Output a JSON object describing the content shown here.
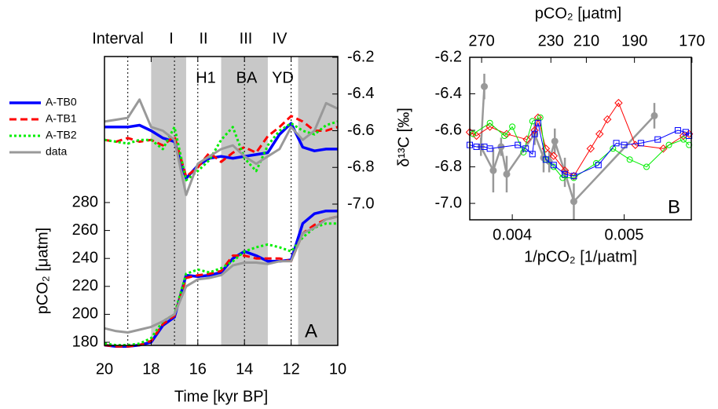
{
  "chart_data": [
    {
      "type": "line",
      "x_label": "Time [kyr BP]",
      "y_label": "pCO₂ [μatm]",
      "panel_label": "A",
      "interval_labels": [
        "Interval",
        "I",
        "II",
        "III",
        "IV"
      ],
      "events": [
        "H1",
        "BA",
        "YD"
      ],
      "shaded": [
        [
          18,
          16.5
        ],
        [
          15,
          13
        ],
        [
          11.7,
          10
        ]
      ],
      "boundaries": [
        19,
        17,
        16,
        14,
        12
      ],
      "xlim": [
        20,
        10
      ],
      "xticks": [
        20,
        18,
        16,
        14,
        12,
        10
      ],
      "ylim": [
        180,
        280
      ],
      "yticks": [
        180,
        200,
        220,
        240,
        260,
        280
      ],
      "y2lim": [
        -7.0,
        -6.2
      ],
      "y2ticks": [
        {
          "value": -7.0,
          "label": "-7.0"
        },
        -6.8,
        -6.6,
        -6.4,
        -6.2
      ],
      "x": [
        20,
        19.5,
        19,
        18.5,
        18,
        17.5,
        17,
        16.5,
        16,
        15.5,
        15,
        14.5,
        14,
        13.5,
        13,
        12.5,
        12,
        11.5,
        11,
        10.5,
        10
      ],
      "series": [
        {
          "name": "A-TB0",
          "color": "#0000ff",
          "style": "solid",
          "values": [
            178,
            177,
            177,
            178,
            180,
            192,
            198,
            228,
            227,
            228,
            230,
            240,
            245,
            242,
            238,
            238,
            239,
            265,
            272,
            274,
            274
          ]
        },
        {
          "name": "A-TB1",
          "color": "#ff0000",
          "style": "dashed",
          "values": [
            178,
            177,
            177,
            178,
            181,
            193,
            199,
            226,
            228,
            229,
            231,
            242,
            242,
            240,
            240,
            240,
            238,
            258,
            264,
            268,
            270
          ]
        },
        {
          "name": "A-TB2",
          "color": "#00ee00",
          "style": "dotted",
          "values": [
            179,
            178,
            178,
            179,
            183,
            195,
            200,
            229,
            232,
            230,
            233,
            238,
            245,
            248,
            250,
            248,
            245,
            255,
            262,
            265,
            265
          ]
        },
        {
          "name": "data",
          "color": "#999999",
          "style": "solid",
          "values": [
            190,
            188,
            187,
            189,
            191,
            195,
            200,
            220,
            225,
            226,
            228,
            235,
            237,
            237,
            236,
            238,
            238,
            258,
            262,
            268,
            270
          ]
        },
        {
          "axis": "y2",
          "color": "#0000ff",
          "style": "solid",
          "values": [
            -6.58,
            -6.58,
            -6.58,
            -6.57,
            -6.6,
            -6.64,
            -6.66,
            -6.86,
            -6.79,
            -6.75,
            -6.74,
            -6.75,
            -6.74,
            -6.73,
            -6.72,
            -6.62,
            -6.56,
            -6.69,
            -6.71,
            -6.7,
            -6.7
          ]
        },
        {
          "axis": "y2",
          "color": "#ff0000",
          "style": "dashed",
          "values": [
            -6.65,
            -6.66,
            -6.64,
            -6.66,
            -6.65,
            -6.68,
            -6.63,
            -6.85,
            -6.8,
            -6.72,
            -6.77,
            -6.72,
            -6.69,
            -6.72,
            -6.63,
            -6.58,
            -6.52,
            -6.55,
            -6.6,
            -6.6,
            -6.58
          ]
        },
        {
          "axis": "y2",
          "color": "#00ee00",
          "style": "dotted",
          "values": [
            -6.65,
            -6.66,
            -6.67,
            -6.65,
            -6.65,
            -6.7,
            -6.58,
            -6.87,
            -6.82,
            -6.76,
            -6.65,
            -6.58,
            -6.75,
            -6.82,
            -6.68,
            -6.6,
            -6.56,
            -6.6,
            -6.62,
            -6.57,
            -6.55
          ]
        },
        {
          "axis": "y2",
          "color": "#999999",
          "style": "solid",
          "values": [
            -6.55,
            -6.54,
            -6.53,
            -6.43,
            -6.58,
            -6.6,
            -6.65,
            -6.95,
            -6.78,
            -6.74,
            -6.7,
            -6.68,
            -6.74,
            -6.78,
            -6.74,
            -6.7,
            -6.58,
            -6.65,
            -6.6,
            -6.45,
            -6.48
          ]
        }
      ]
    },
    {
      "type": "scatter",
      "x_label": "1/pCO₂ [1/μatm]",
      "x2_label": "pCO₂ [μatm]",
      "y_label": "δ¹³C [‰]",
      "panel_label": "B",
      "xlim": [
        0.00362,
        0.0056
      ],
      "xticks": [
        0.004,
        0.005
      ],
      "x2ticks": [
        {
          "value": 0.003726,
          "label": "270"
        },
        {
          "value": 0.004345,
          "label": "230"
        },
        {
          "value": 0.004662,
          "label": "210"
        },
        {
          "value": 0.005092,
          "label": "190"
        },
        {
          "value": 0.005606,
          "label": "170"
        }
      ],
      "ylim": [
        -7.09,
        -6.2
      ],
      "yticks": [
        {
          "value": -7.0,
          "label": "-7.0"
        },
        -6.8,
        -6.6,
        -6.4,
        -6.2
      ],
      "series": [
        {
          "color": "#999999",
          "marker": "filled-circle",
          "x": [
            0.00375,
            0.00372,
            0.00383,
            0.0039,
            0.00395,
            0.0042,
            0.00428,
            0.00433,
            0.00438,
            0.00447,
            0.00455,
            0.00527
          ],
          "values": [
            -6.36,
            -6.69,
            -6.82,
            -6.69,
            -6.84,
            -6.62,
            -6.75,
            -6.77,
            -6.66,
            -6.83,
            -6.99,
            -6.52
          ],
          "errors": [
            0.07,
            0.05,
            0.12,
            0.05,
            0.1,
            0.06,
            0.08,
            0.06,
            0.07,
            0.08,
            0.1,
            0.07
          ]
        },
        {
          "color": "#ff0000",
          "marker": "diamond",
          "x": [
            0.00362,
            0.00368,
            0.0038,
            0.00395,
            0.00413,
            0.0042,
            0.00423,
            0.0043,
            0.00437,
            0.00447,
            0.00455,
            0.0047,
            0.00478,
            0.00485,
            0.00495,
            0.0051,
            0.00535,
            0.00553,
            0.00558
          ],
          "values": [
            -6.61,
            -6.63,
            -6.58,
            -6.62,
            -6.65,
            -6.6,
            -6.53,
            -6.7,
            -6.74,
            -6.82,
            -6.85,
            -6.7,
            -6.62,
            -6.54,
            -6.45,
            -6.68,
            -6.7,
            -6.63,
            -6.62
          ]
        },
        {
          "color": "#00ee00",
          "marker": "circle",
          "x": [
            0.00365,
            0.0038,
            0.00393,
            0.004,
            0.0041,
            0.00418,
            0.00425,
            0.0043,
            0.00437,
            0.00445,
            0.00455,
            0.00475,
            0.0049,
            0.00505,
            0.0052,
            0.0054,
            0.00553,
            0.00558
          ],
          "values": [
            -6.62,
            -6.56,
            -6.63,
            -6.58,
            -6.72,
            -6.55,
            -6.53,
            -6.76,
            -6.8,
            -6.86,
            -6.86,
            -6.78,
            -6.7,
            -6.76,
            -6.8,
            -6.68,
            -6.65,
            -6.68
          ]
        },
        {
          "color": "#0000ff",
          "marker": "square",
          "x": [
            0.00362,
            0.00368,
            0.00375,
            0.0038,
            0.00405,
            0.00412,
            0.00418,
            0.0042,
            0.00423,
            0.0043,
            0.00437,
            0.00447,
            0.00455,
            0.00477,
            0.00493,
            0.005,
            0.00515,
            0.0053,
            0.00548,
            0.00555,
            0.00558
          ],
          "values": [
            -6.68,
            -6.69,
            -6.69,
            -6.7,
            -6.68,
            -6.7,
            -6.73,
            -6.62,
            -6.56,
            -6.76,
            -6.79,
            -6.84,
            -6.85,
            -6.79,
            -6.67,
            -6.68,
            -6.67,
            -6.65,
            -6.6,
            -6.61,
            -6.63
          ]
        }
      ]
    }
  ]
}
